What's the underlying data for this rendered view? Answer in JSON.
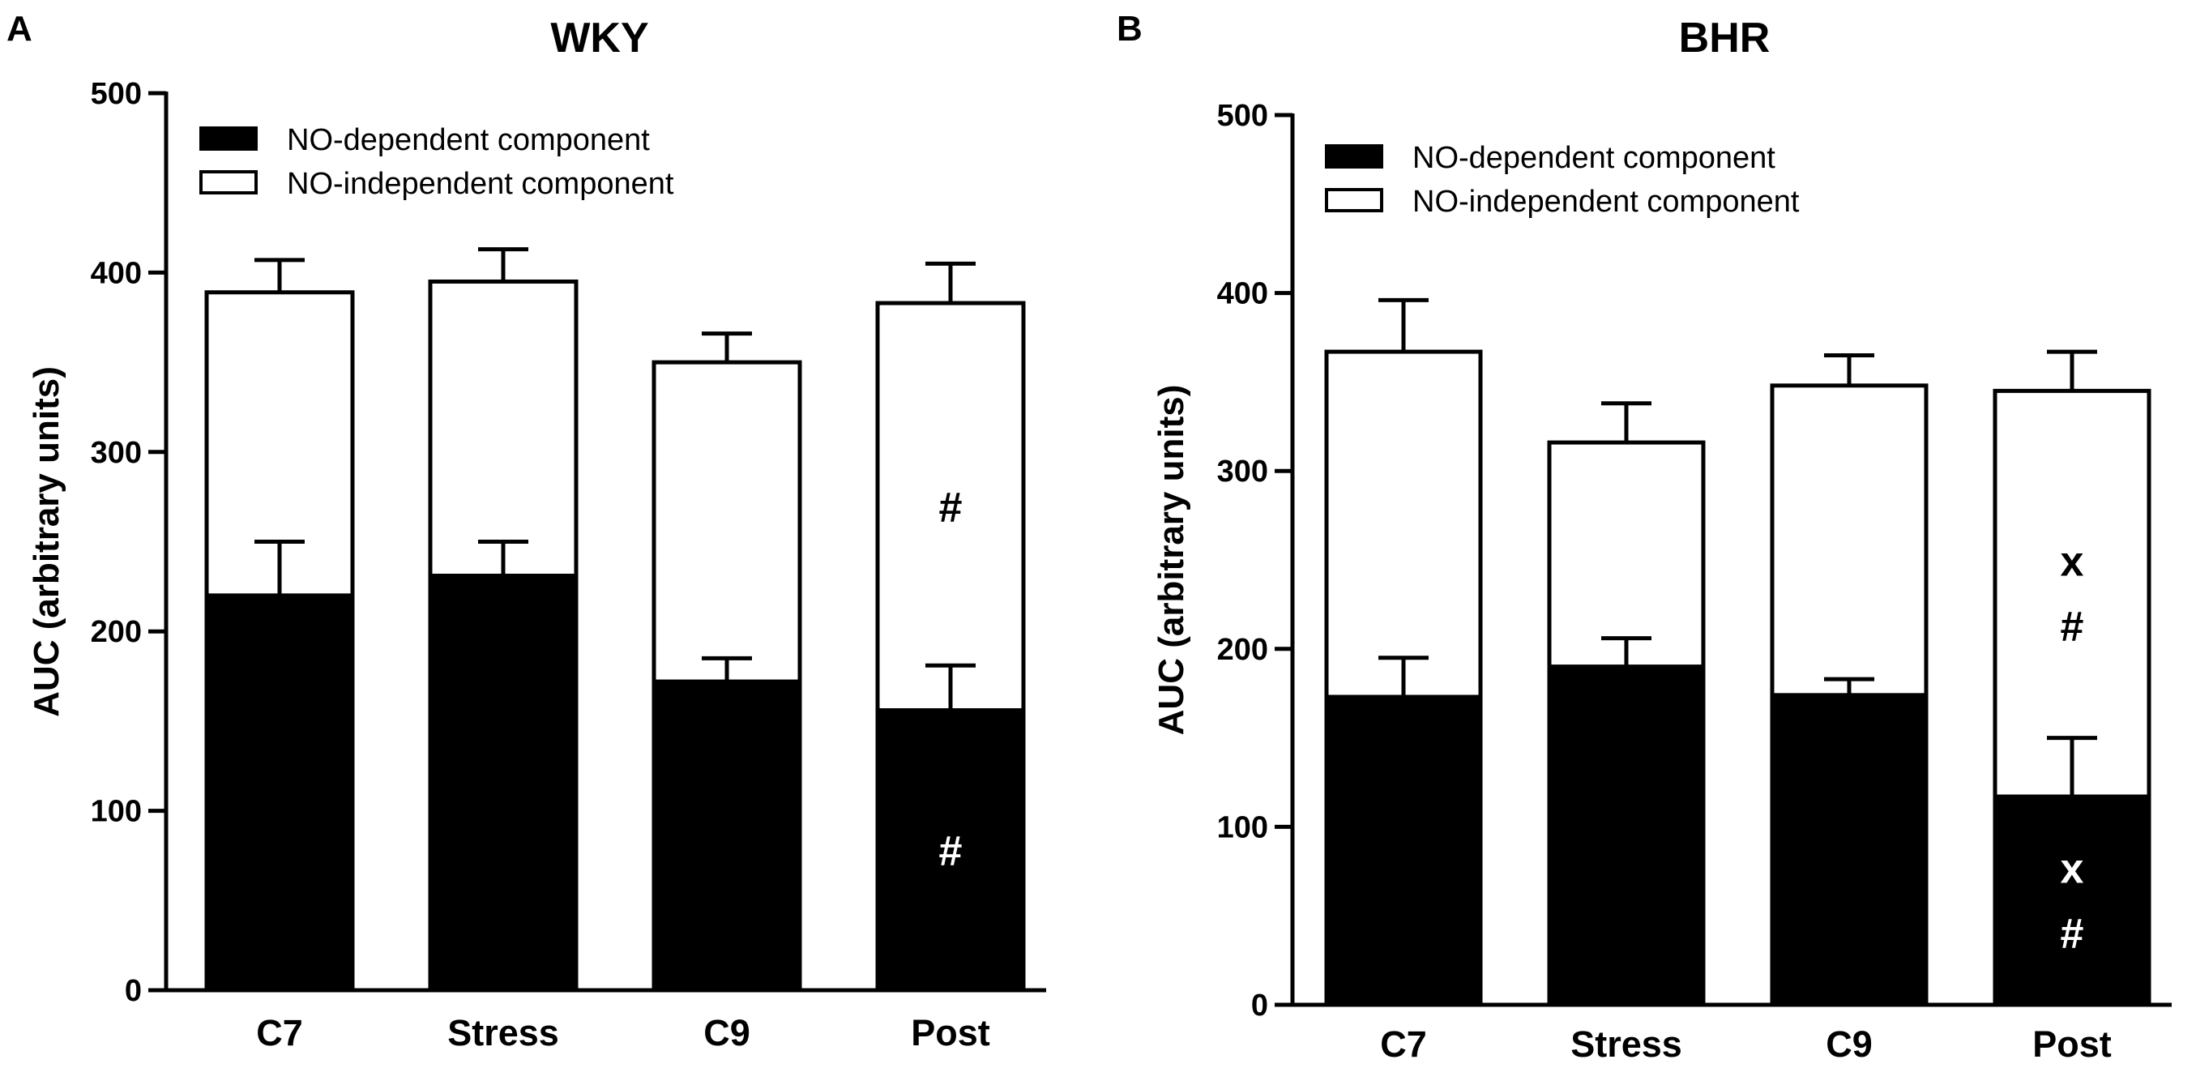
{
  "chart_data": [
    {
      "panel": "A",
      "type": "bar",
      "stacked": true,
      "title": "WKY",
      "xlabel": "",
      "ylabel": "AUC (arbitrary units)",
      "ylim": [
        0,
        500
      ],
      "yticks": [
        0,
        100,
        200,
        300,
        400,
        500
      ],
      "categories": [
        "C7",
        "Stress",
        "C9",
        "Post"
      ],
      "legend_position": "top-left",
      "series": [
        {
          "name": "NO-dependent component",
          "fill": "#000000",
          "values": [
            220,
            231,
            172,
            156
          ],
          "errors": [
            30,
            19,
            13,
            25
          ]
        },
        {
          "name": "NO-independent component",
          "fill": "#ffffff",
          "values": [
            169,
            164,
            178,
            227
          ],
          "errors": [
            18,
            18,
            16,
            22
          ]
        }
      ],
      "annotations": [
        {
          "category": "Post",
          "series": "NO-independent component",
          "lines": [
            "#"
          ]
        },
        {
          "category": "Post",
          "series": "NO-dependent component",
          "lines": [
            "#"
          ]
        }
      ]
    },
    {
      "panel": "B",
      "type": "bar",
      "stacked": true,
      "title": "BHR",
      "xlabel": "",
      "ylabel": "AUC (arbitrary units)",
      "ylim": [
        0,
        500
      ],
      "yticks": [
        0,
        100,
        200,
        300,
        400,
        500
      ],
      "categories": [
        "C7",
        "Stress",
        "C9",
        "Post"
      ],
      "legend_position": "top-left",
      "series": [
        {
          "name": "NO-dependent component",
          "fill": "#000000",
          "values": [
            173,
            190,
            174,
            117
          ],
          "errors": [
            22,
            16,
            9,
            33
          ]
        },
        {
          "name": "NO-independent component",
          "fill": "#ffffff",
          "values": [
            194,
            126,
            174,
            228
          ],
          "errors": [
            29,
            22,
            17,
            22
          ]
        }
      ],
      "annotations": [
        {
          "category": "Post",
          "series": "NO-independent component",
          "lines": [
            "x",
            "#"
          ]
        },
        {
          "category": "Post",
          "series": "NO-dependent component",
          "lines": [
            "x",
            "#"
          ]
        }
      ]
    }
  ]
}
